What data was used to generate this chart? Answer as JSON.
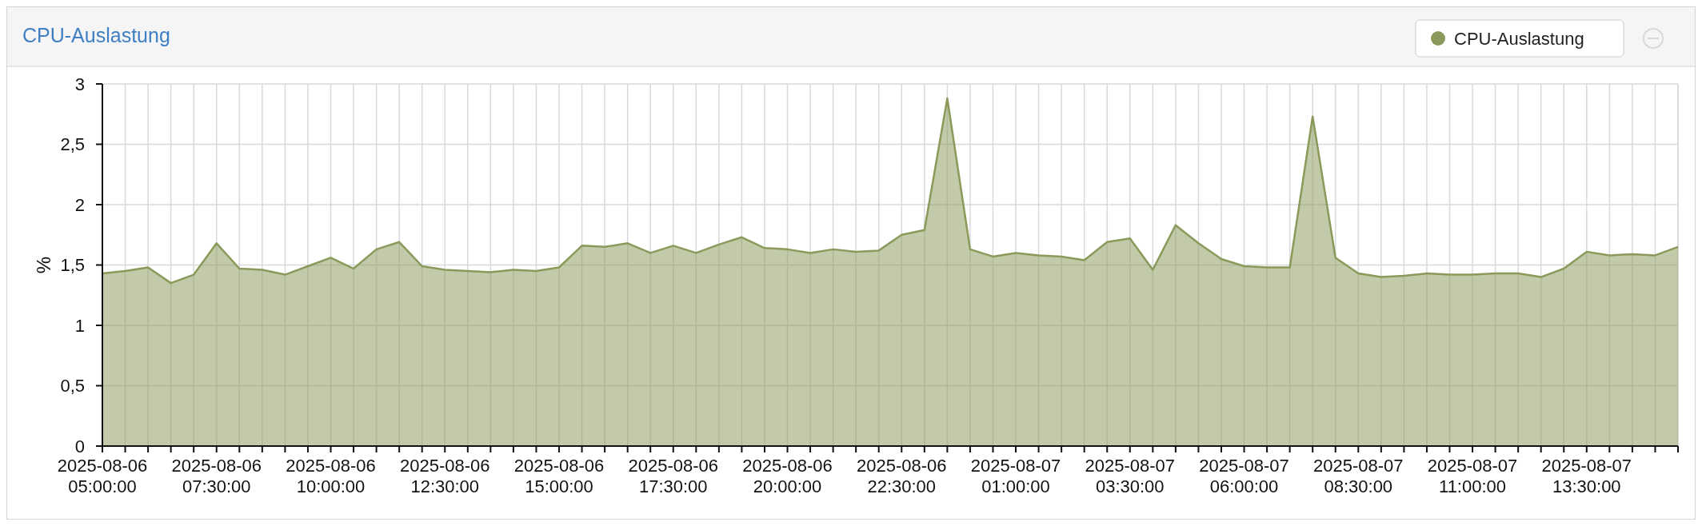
{
  "chart_data": {
    "type": "area",
    "title": "CPU-Auslastung",
    "ylabel": "%",
    "legend": "top right",
    "grid": true,
    "marker": "none",
    "xlim": [
      "2025-08-06T05:00",
      "2025-08-07T15:30"
    ],
    "ylim": [
      0,
      3
    ],
    "yticks": [
      0,
      {
        "value": 0.5,
        "label": "0,5"
      },
      1,
      {
        "value": 1.5,
        "label": "1,5"
      },
      2,
      {
        "value": 2.5,
        "label": "2,5"
      },
      3
    ],
    "xticks": [
      {
        "value": "2025-08-06T05:00",
        "label": "2025-08-06\n05:00:00"
      },
      {
        "value": "2025-08-06T05:30",
        "label": null
      },
      {
        "value": "2025-08-06T06:00",
        "label": null
      },
      {
        "value": "2025-08-06T06:30",
        "label": null
      },
      {
        "value": "2025-08-06T07:00",
        "label": null
      },
      {
        "value": "2025-08-06T07:30",
        "label": "2025-08-06\n07:30:00"
      },
      {
        "value": "2025-08-06T08:00",
        "label": null
      },
      {
        "value": "2025-08-06T08:30",
        "label": null
      },
      {
        "value": "2025-08-06T09:00",
        "label": null
      },
      {
        "value": "2025-08-06T09:30",
        "label": null
      },
      {
        "value": "2025-08-06T10:00",
        "label": "2025-08-06\n10:00:00"
      },
      {
        "value": "2025-08-06T10:30",
        "label": null
      },
      {
        "value": "2025-08-06T11:00",
        "label": null
      },
      {
        "value": "2025-08-06T11:30",
        "label": null
      },
      {
        "value": "2025-08-06T12:00",
        "label": null
      },
      {
        "value": "2025-08-06T12:30",
        "label": "2025-08-06\n12:30:00"
      },
      {
        "value": "2025-08-06T13:00",
        "label": null
      },
      {
        "value": "2025-08-06T13:30",
        "label": null
      },
      {
        "value": "2025-08-06T14:00",
        "label": null
      },
      {
        "value": "2025-08-06T14:30",
        "label": null
      },
      {
        "value": "2025-08-06T15:00",
        "label": "2025-08-06\n15:00:00"
      },
      {
        "value": "2025-08-06T15:30",
        "label": null
      },
      {
        "value": "2025-08-06T16:00",
        "label": null
      },
      {
        "value": "2025-08-06T16:30",
        "label": null
      },
      {
        "value": "2025-08-06T17:00",
        "label": null
      },
      {
        "value": "2025-08-06T17:30",
        "label": "2025-08-06\n17:30:00"
      },
      {
        "value": "2025-08-06T18:00",
        "label": null
      },
      {
        "value": "2025-08-06T18:30",
        "label": null
      },
      {
        "value": "2025-08-06T19:00",
        "label": null
      },
      {
        "value": "2025-08-06T19:30",
        "label": null
      },
      {
        "value": "2025-08-06T20:00",
        "label": "2025-08-06\n20:00:00"
      },
      {
        "value": "2025-08-06T20:30",
        "label": null
      },
      {
        "value": "2025-08-06T21:00",
        "label": null
      },
      {
        "value": "2025-08-06T21:30",
        "label": null
      },
      {
        "value": "2025-08-06T22:00",
        "label": null
      },
      {
        "value": "2025-08-06T22:30",
        "label": "2025-08-06\n22:30:00"
      },
      {
        "value": "2025-08-06T23:00",
        "label": null
      },
      {
        "value": "2025-08-06T23:30",
        "label": null
      },
      {
        "value": "2025-08-07T00:00",
        "label": null
      },
      {
        "value": "2025-08-07T00:30",
        "label": null
      },
      {
        "value": "2025-08-07T01:00",
        "label": "2025-08-07\n01:00:00"
      },
      {
        "value": "2025-08-07T01:30",
        "label": null
      },
      {
        "value": "2025-08-07T02:00",
        "label": null
      },
      {
        "value": "2025-08-07T02:30",
        "label": null
      },
      {
        "value": "2025-08-07T03:00",
        "label": null
      },
      {
        "value": "2025-08-07T03:30",
        "label": "2025-08-07\n03:30:00"
      },
      {
        "value": "2025-08-07T04:00",
        "label": null
      },
      {
        "value": "2025-08-07T04:30",
        "label": null
      },
      {
        "value": "2025-08-07T05:00",
        "label": null
      },
      {
        "value": "2025-08-07T05:30",
        "label": null
      },
      {
        "value": "2025-08-07T06:00",
        "label": "2025-08-07\n06:00:00"
      },
      {
        "value": "2025-08-07T06:30",
        "label": null
      },
      {
        "value": "2025-08-07T07:00",
        "label": null
      },
      {
        "value": "2025-08-07T07:30",
        "label": null
      },
      {
        "value": "2025-08-07T08:00",
        "label": null
      },
      {
        "value": "2025-08-07T08:30",
        "label": "2025-08-07\n08:30:00"
      },
      {
        "value": "2025-08-07T09:00",
        "label": null
      },
      {
        "value": "2025-08-07T09:30",
        "label": null
      },
      {
        "value": "2025-08-07T10:00",
        "label": null
      },
      {
        "value": "2025-08-07T10:30",
        "label": null
      },
      {
        "value": "2025-08-07T11:00",
        "label": "2025-08-07\n11:00:00"
      },
      {
        "value": "2025-08-07T11:30",
        "label": null
      },
      {
        "value": "2025-08-07T12:00",
        "label": null
      },
      {
        "value": "2025-08-07T12:30",
        "label": null
      },
      {
        "value": "2025-08-07T13:00",
        "label": null
      },
      {
        "value": "2025-08-07T13:30",
        "label": "2025-08-07\n13:30:00"
      },
      {
        "value": "2025-08-07T14:00",
        "label": null
      },
      {
        "value": "2025-08-07T14:30",
        "label": null
      },
      {
        "value": "2025-08-07T15:00",
        "label": null
      },
      {
        "value": "2025-08-07T15:30",
        "label": null
      }
    ],
    "x": [
      "2025-08-06T05:00",
      "2025-08-06T05:30",
      "2025-08-06T06:00",
      "2025-08-06T06:30",
      "2025-08-06T07:00",
      "2025-08-06T07:30",
      "2025-08-06T08:00",
      "2025-08-06T08:30",
      "2025-08-06T09:00",
      "2025-08-06T09:30",
      "2025-08-06T10:00",
      "2025-08-06T10:30",
      "2025-08-06T11:00",
      "2025-08-06T11:30",
      "2025-08-06T12:00",
      "2025-08-06T12:30",
      "2025-08-06T13:00",
      "2025-08-06T13:30",
      "2025-08-06T14:00",
      "2025-08-06T14:30",
      "2025-08-06T15:00",
      "2025-08-06T15:30",
      "2025-08-06T16:00",
      "2025-08-06T16:30",
      "2025-08-06T17:00",
      "2025-08-06T17:30",
      "2025-08-06T18:00",
      "2025-08-06T18:30",
      "2025-08-06T19:00",
      "2025-08-06T19:30",
      "2025-08-06T20:00",
      "2025-08-06T20:30",
      "2025-08-06T21:00",
      "2025-08-06T21:30",
      "2025-08-06T22:00",
      "2025-08-06T22:30",
      "2025-08-06T23:00",
      "2025-08-06T23:30",
      "2025-08-07T00:00",
      "2025-08-07T00:30",
      "2025-08-07T01:00",
      "2025-08-07T01:30",
      "2025-08-07T02:00",
      "2025-08-07T02:30",
      "2025-08-07T03:00",
      "2025-08-07T03:30",
      "2025-08-07T04:00",
      "2025-08-07T04:30",
      "2025-08-07T05:00",
      "2025-08-07T05:30",
      "2025-08-07T06:00",
      "2025-08-07T06:30",
      "2025-08-07T07:00",
      "2025-08-07T07:30",
      "2025-08-07T08:00",
      "2025-08-07T08:30",
      "2025-08-07T09:00",
      "2025-08-07T09:30",
      "2025-08-07T10:00",
      "2025-08-07T10:30",
      "2025-08-07T11:00",
      "2025-08-07T11:30",
      "2025-08-07T12:00",
      "2025-08-07T12:30",
      "2025-08-07T13:00",
      "2025-08-07T13:30",
      "2025-08-07T14:00",
      "2025-08-07T14:30",
      "2025-08-07T15:00",
      "2025-08-07T15:30"
    ],
    "series": [
      {
        "name": "CPU-Auslastung",
        "color": "#8a9a5b",
        "values": [
          1.43,
          1.45,
          1.48,
          1.35,
          1.42,
          1.68,
          1.47,
          1.46,
          1.42,
          1.49,
          1.56,
          1.47,
          1.63,
          1.69,
          1.49,
          1.46,
          1.45,
          1.44,
          1.46,
          1.45,
          1.48,
          1.66,
          1.65,
          1.68,
          1.6,
          1.66,
          1.6,
          1.67,
          1.73,
          1.64,
          1.63,
          1.6,
          1.63,
          1.61,
          1.62,
          1.75,
          1.79,
          2.88,
          1.63,
          1.57,
          1.6,
          1.58,
          1.57,
          1.54,
          1.69,
          1.72,
          1.46,
          1.83,
          1.68,
          1.55,
          1.49,
          1.48,
          1.48,
          2.73,
          1.56,
          1.43,
          1.4,
          1.41,
          1.43,
          1.42,
          1.42,
          1.43,
          1.43,
          1.4,
          1.47,
          1.61,
          1.58,
          1.59,
          1.58,
          1.65
        ]
      }
    ]
  }
}
